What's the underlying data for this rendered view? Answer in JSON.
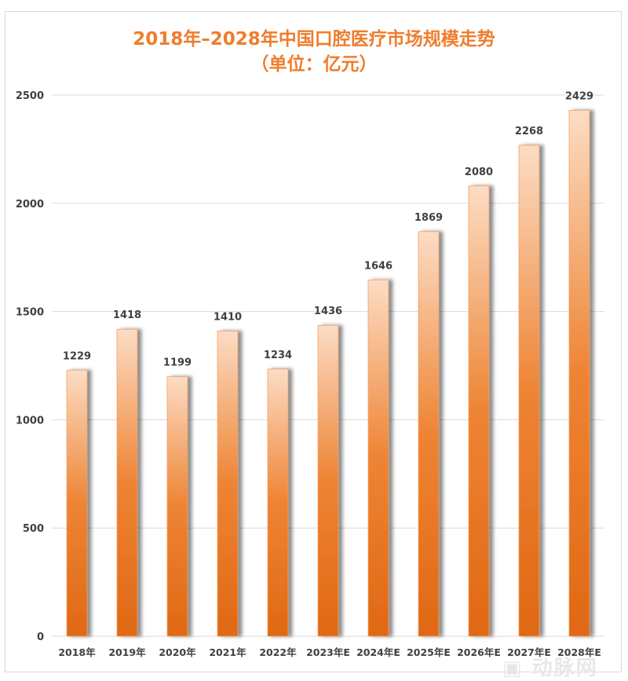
{
  "chart_data": {
    "type": "bar",
    "title": "2018年–2028年中国口腔医疗市场规模走势",
    "subtitle": "（单位：亿元）",
    "categories": [
      "2018年",
      "2019年",
      "2020年",
      "2021年",
      "2022年",
      "2023年E",
      "2024年E",
      "2025年E",
      "2026年E",
      "2027年E",
      "2028年E"
    ],
    "values": [
      1229,
      1418,
      1199,
      1410,
      1234,
      1436,
      1646,
      1869,
      2080,
      2268,
      2429
    ],
    "ylim": [
      0,
      2500
    ],
    "yticks": [
      0,
      500,
      1000,
      1500,
      2000,
      2500
    ],
    "grid": true,
    "colors": {
      "bar_top": "#fcdcc4",
      "bar_mid": "#ee8434",
      "bar_bottom": "#e06814",
      "title": "#ef7d2c"
    }
  },
  "watermark": "动脉网"
}
